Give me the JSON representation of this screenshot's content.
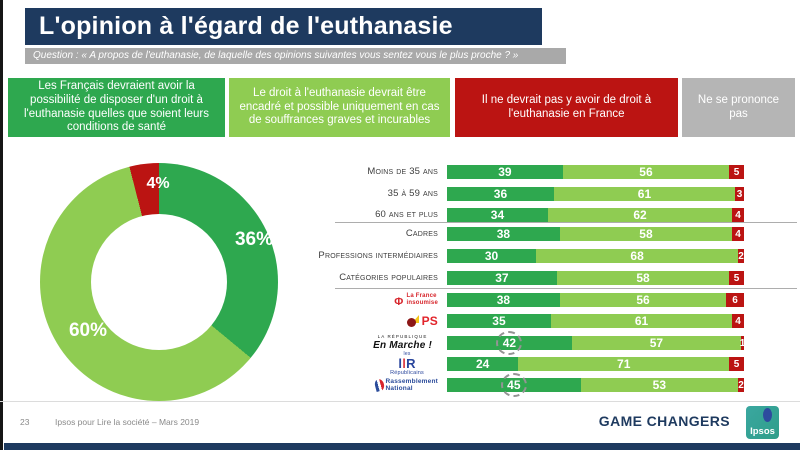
{
  "page": {
    "title": "L'opinion à l'égard de l'euthanasie",
    "question": "Question : « A propos de l'euthanasie, de laquelle des opinions suivantes vous sentez vous le plus proche ? »",
    "page_number": "23",
    "source": "Ipsos pour Lire la société – Mars 2019",
    "brand": "GAME CHANGERS",
    "logo_text": "Ipsos"
  },
  "colors": {
    "navy": "#1e3a5f",
    "dark_green": "#2ea84f",
    "light_green": "#8fcc52",
    "red": "#bb1412",
    "gray": "#b5b5b5",
    "question_gray": "#a9a9a9"
  },
  "legend": [
    {
      "label": "Les Français devraient avoir la possibilité de disposer d'un droit à l'euthanasie quelles que soient leurs conditions de santé",
      "color_key": "dark_green"
    },
    {
      "label": "Le droit à l'euthanasie devrait être encadré et possible uniquement en cas de souffrances graves et incurables",
      "color_key": "light_green"
    },
    {
      "label": "Il ne devrait pas y avoir de droit à l'euthanasie en France",
      "color_key": "red"
    },
    {
      "label": "Ne se prononce pas",
      "color_key": "gray"
    }
  ],
  "chart_data": [
    {
      "type": "pie",
      "subtype": "donut",
      "slices": [
        {
          "label": "36%",
          "value": 36,
          "color_key": "dark_green",
          "meaning": "Les Français devraient avoir la possibilité de disposer d'un droit à l'euthanasie quelles que soient leurs conditions de santé"
        },
        {
          "label": "60%",
          "value": 60,
          "color_key": "light_green",
          "meaning": "Le droit à l'euthanasie devrait être encadré et possible uniquement en cas de souffrances graves et incurables"
        },
        {
          "label": "4%",
          "value": 4,
          "color_key": "red",
          "meaning": "Il ne devrait pas y avoir de droit à l'euthanasie en France"
        }
      ]
    },
    {
      "type": "bar",
      "stacked": true,
      "orientation": "horizontal",
      "x_max": 100,
      "categories": [
        {
          "type": "text",
          "label": "Moins de 35 ans"
        },
        {
          "type": "text",
          "label": "35 à 59 ans"
        },
        {
          "type": "text",
          "label": "60 ans et plus"
        },
        {
          "type": "text",
          "label": "Cadres"
        },
        {
          "type": "text",
          "label": "Professions intermédiaires"
        },
        {
          "type": "text",
          "label": "Catégories populaires"
        },
        {
          "type": "logo",
          "logo_id": "lfi",
          "label": "La France insoumise"
        },
        {
          "type": "logo",
          "logo_id": "ps",
          "label": "PS"
        },
        {
          "type": "logo",
          "logo_id": "lrem",
          "label": "La République En Marche !"
        },
        {
          "type": "logo",
          "logo_id": "lr",
          "label": "Les Républicains"
        },
        {
          "type": "logo",
          "logo_id": "rn",
          "label": "Rassemblement National"
        }
      ],
      "series": [
        {
          "name": "Les Français devraient avoir la possibilité de disposer d'un droit à l'euthanasie quelles que soient leurs conditions de santé",
          "color_key": "dark_green",
          "values": [
            39,
            36,
            34,
            38,
            30,
            37,
            38,
            35,
            42,
            24,
            45
          ]
        },
        {
          "name": "Le droit à l'euthanasie devrait être encadré et possible uniquement en cas de souffrances graves et incurables",
          "color_key": "light_green",
          "values": [
            56,
            61,
            62,
            58,
            68,
            58,
            56,
            61,
            57,
            71,
            53
          ]
        },
        {
          "name": "Il ne devrait pas y avoir de droit à l'euthanasie en France",
          "color_key": "red",
          "values": [
            5,
            3,
            4,
            4,
            2,
            5,
            6,
            4,
            1,
            5,
            2
          ]
        }
      ],
      "annotations": [
        {
          "row": 8,
          "series": 0,
          "note": "dashed-circle",
          "value": 42
        },
        {
          "row": 10,
          "series": 0,
          "note": "dashed-circle",
          "value": 45
        }
      ]
    }
  ],
  "party_logos": {
    "lfi": {
      "symbol": "φ",
      "lines": [
        "La France",
        "insoumise"
      ]
    },
    "ps": {
      "text": "PS"
    },
    "lrem": {
      "lines": [
        "LA RÉPUBLIQUE",
        "En Marche !"
      ]
    },
    "lr": {
      "les": "les",
      "main": "lR",
      "sub": "Républicains"
    },
    "rn": {
      "lines": [
        "Rassemblement",
        "National"
      ]
    }
  }
}
